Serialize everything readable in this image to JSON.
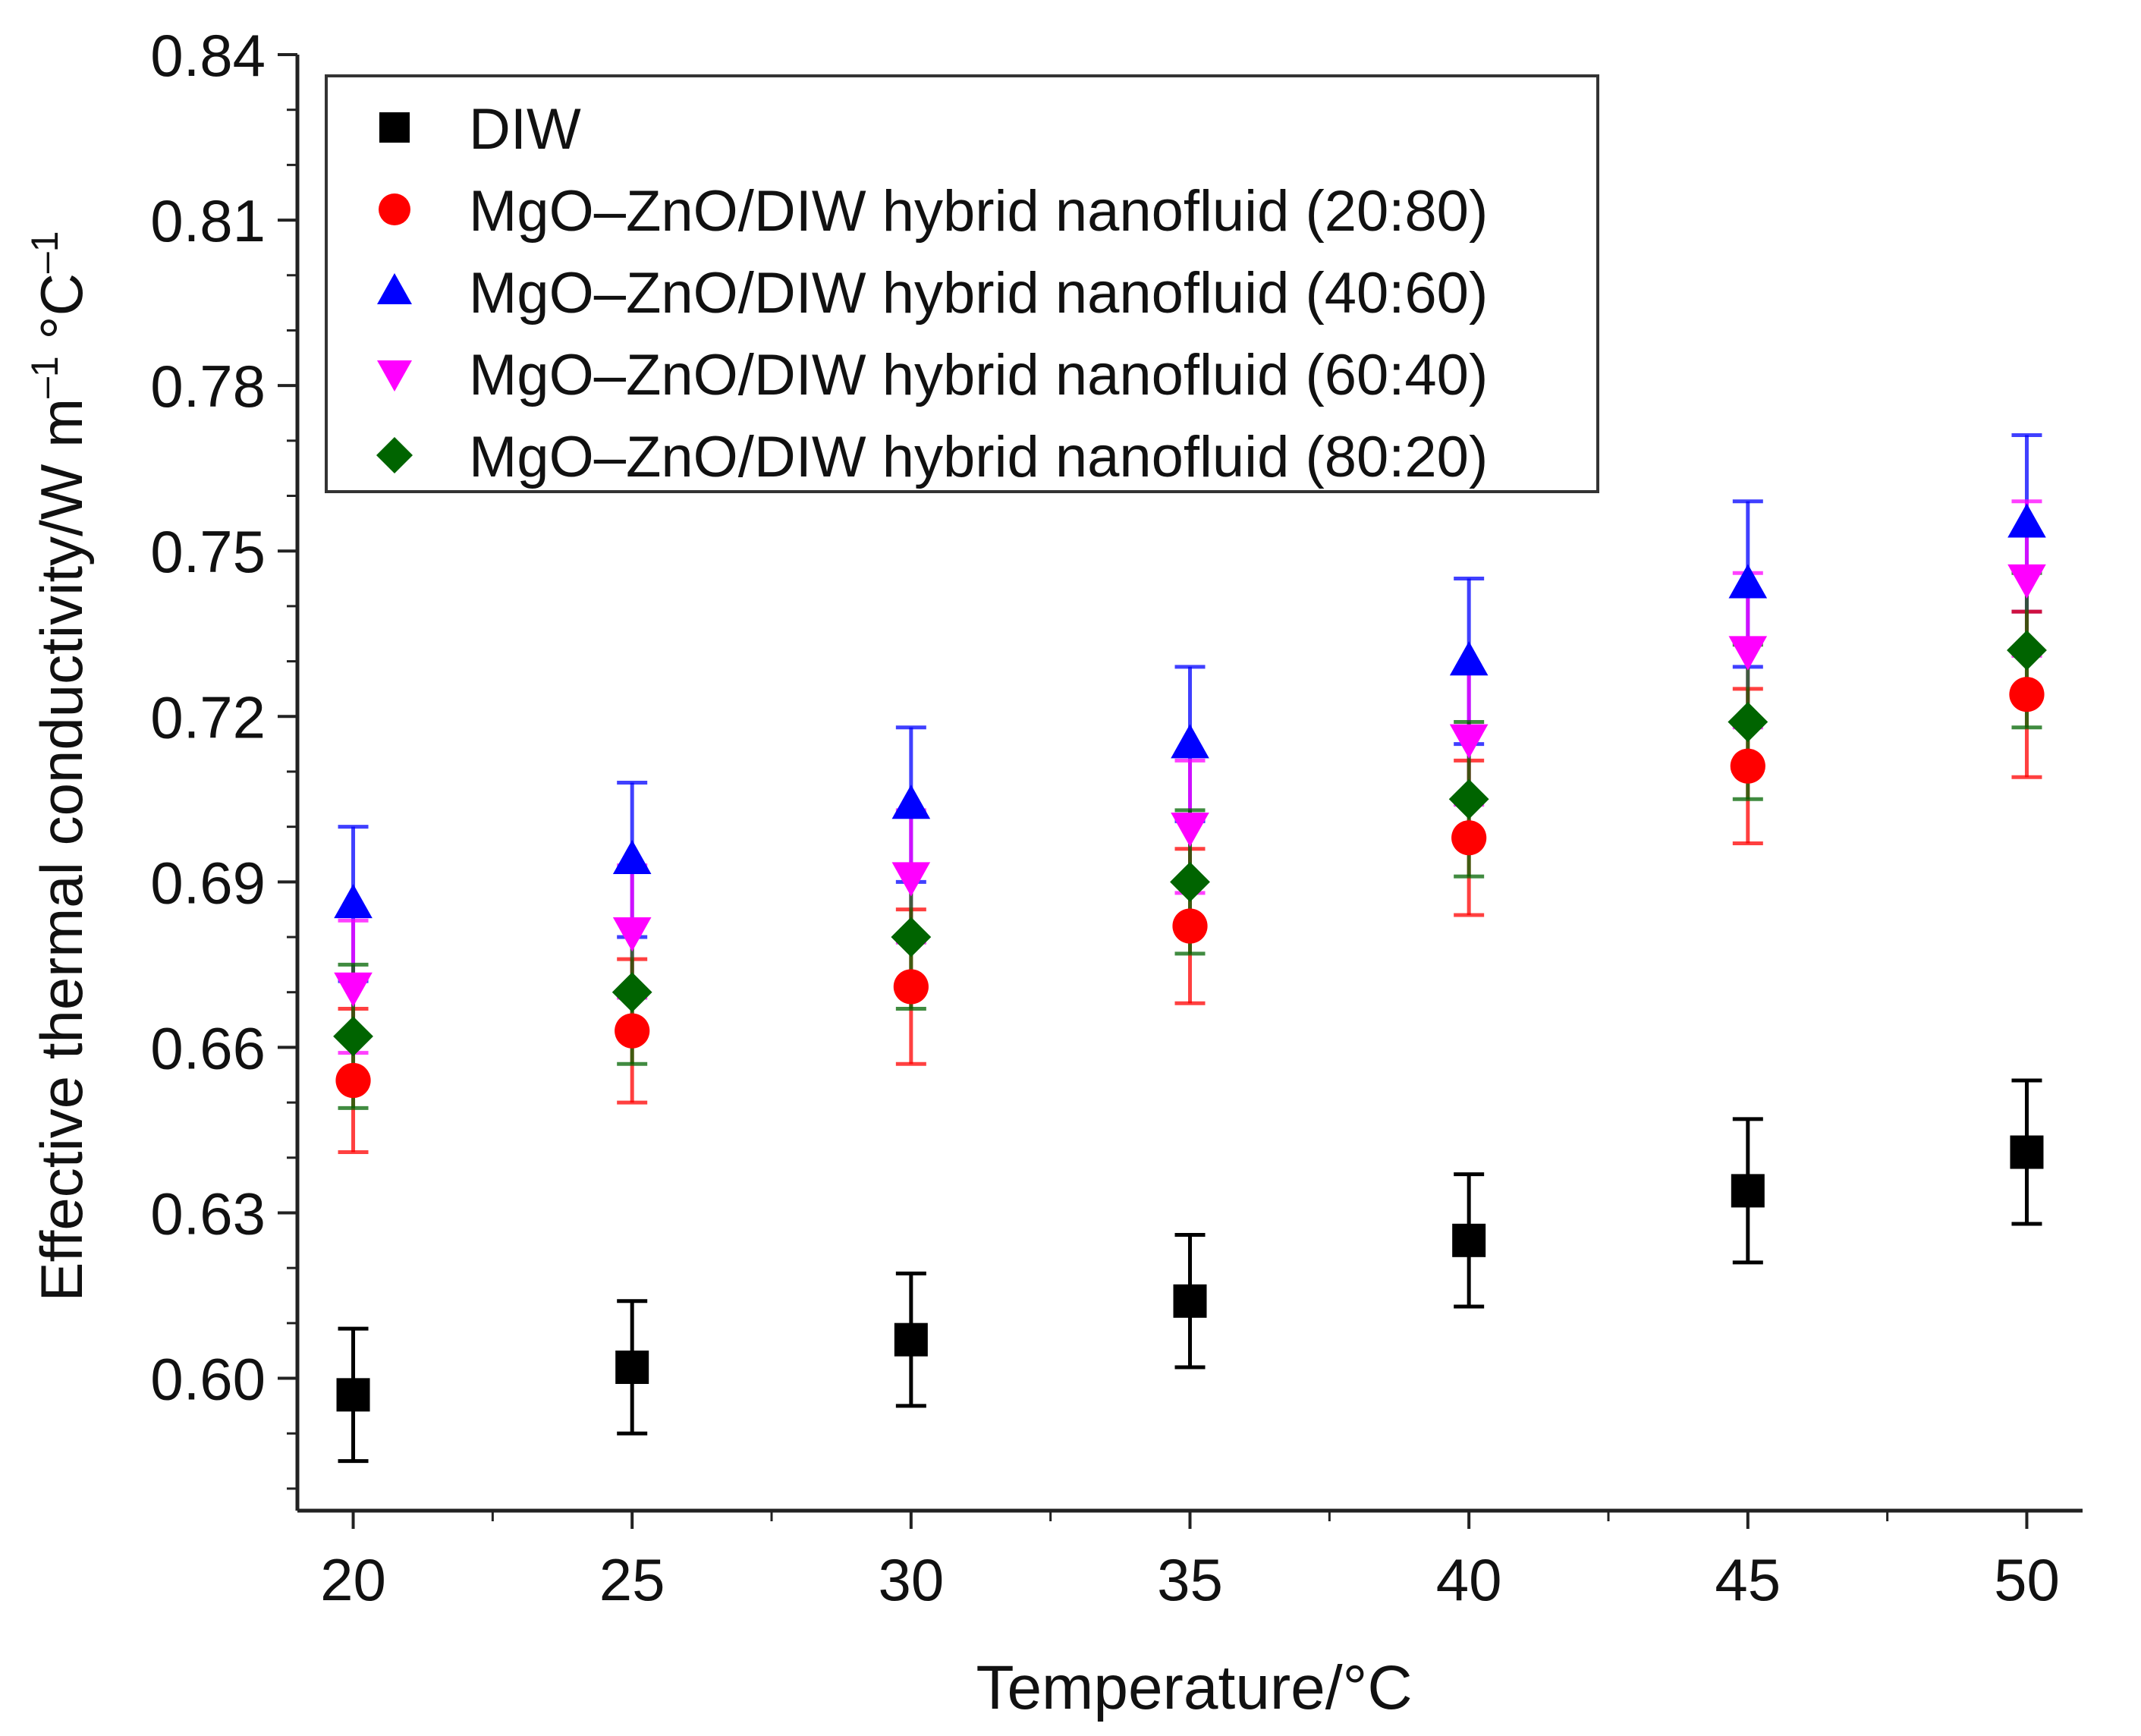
{
  "chart_data": {
    "type": "scatter",
    "title": "",
    "xlabel": "Temperature/°C",
    "ylabel": "Effective thermal conductivity/W m",
    "ylabel_sup1": "–1",
    "ylabel_mid": " °C",
    "ylabel_sup2": "–1",
    "xlim": [
      19,
      51
    ],
    "ylim": [
      0.576,
      0.84
    ],
    "x_ticks": [
      20,
      25,
      30,
      35,
      40,
      45,
      50
    ],
    "x_tick_labels": [
      "20",
      "25",
      "30",
      "35",
      "40",
      "45",
      "50"
    ],
    "y_ticks": [
      0.6,
      0.63,
      0.66,
      0.69,
      0.72,
      0.75,
      0.78,
      0.81,
      0.84
    ],
    "y_tick_labels": [
      "0.60",
      "0.63",
      "0.66",
      "0.69",
      "0.72",
      "0.75",
      "0.78",
      "0.81",
      "0.84"
    ],
    "legend_position": "top-left",
    "x": [
      20,
      25,
      30,
      35,
      40,
      45,
      50
    ],
    "series": [
      {
        "name": "DIW",
        "marker": "square",
        "color": "#000000",
        "values": [
          0.597,
          0.602,
          0.607,
          0.614,
          0.625,
          0.634,
          0.641
        ],
        "error": [
          0.012,
          0.012,
          0.012,
          0.012,
          0.012,
          0.013,
          0.013
        ]
      },
      {
        "name": "MgO–ZnO/DIW hybrid nanofluid (20:80)",
        "marker": "circle",
        "color": "#ff0000",
        "values": [
          0.654,
          0.663,
          0.671,
          0.682,
          0.698,
          0.711,
          0.724
        ],
        "error": [
          0.013,
          0.013,
          0.014,
          0.014,
          0.014,
          0.014,
          0.015
        ]
      },
      {
        "name": "MgO–ZnO/DIW hybrid nanofluid (40:60)",
        "marker": "triangle-up",
        "color": "#0000ff",
        "values": [
          0.686,
          0.694,
          0.704,
          0.715,
          0.73,
          0.744,
          0.755
        ],
        "error": [
          0.014,
          0.014,
          0.014,
          0.014,
          0.015,
          0.015,
          0.016
        ]
      },
      {
        "name": "MgO–ZnO/DIW hybrid nanofluid (60:40)",
        "marker": "triangle-down",
        "color": "#ff00ff",
        "values": [
          0.671,
          0.681,
          0.691,
          0.7,
          0.716,
          0.732,
          0.745
        ],
        "error": [
          0.012,
          0.012,
          0.012,
          0.012,
          0.012,
          0.014,
          0.014
        ]
      },
      {
        "name": "MgO–ZnO/DIW hybrid nanofluid (80:20)",
        "marker": "diamond",
        "color": "#006400",
        "values": [
          0.662,
          0.67,
          0.68,
          0.69,
          0.705,
          0.719,
          0.732
        ],
        "error": [
          0.013,
          0.013,
          0.013,
          0.013,
          0.014,
          0.014,
          0.014
        ]
      }
    ]
  }
}
